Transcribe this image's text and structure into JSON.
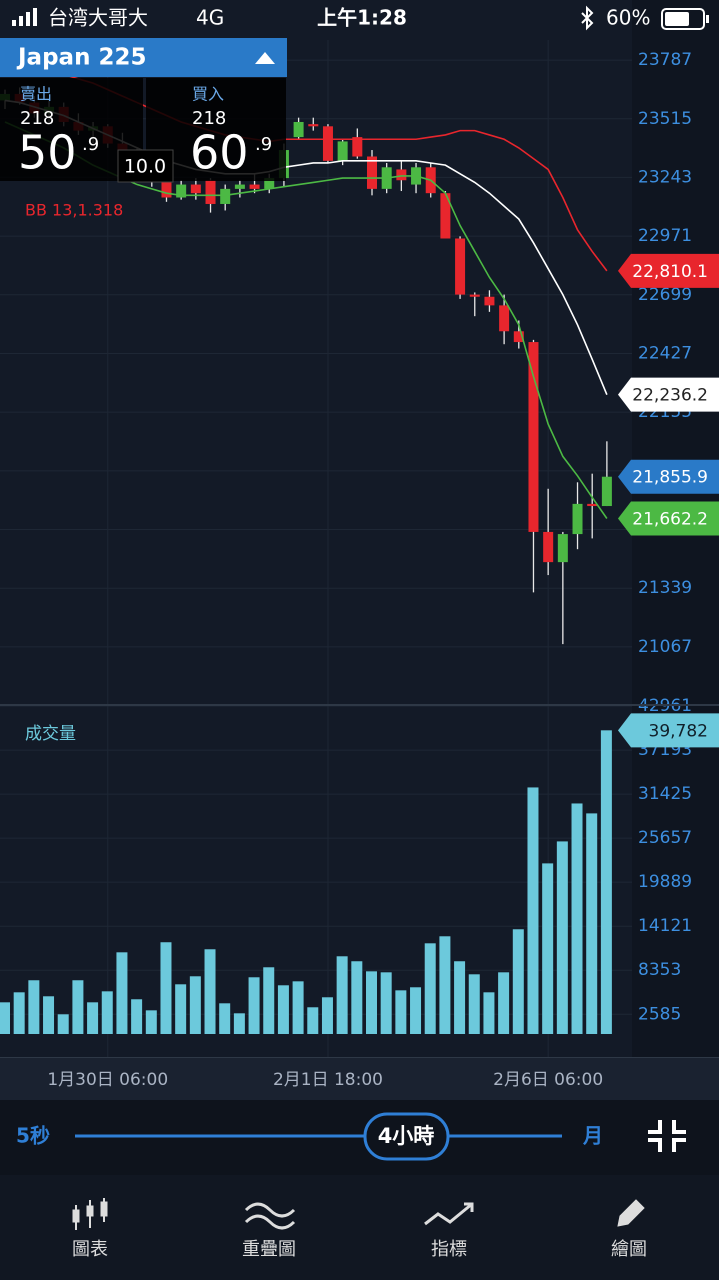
{
  "status_bar": {
    "carrier": "台湾大哥大",
    "network": "4G",
    "time": "上午1:28",
    "battery": "60%"
  },
  "header": {
    "instrument": "Japan 225",
    "sell": {
      "label": "賣出",
      "small": "218",
      "big": "50",
      "decimal": ".9"
    },
    "spread": "10.0",
    "buy": {
      "label": "買入",
      "small": "218",
      "big": "60",
      "decimal": ".9"
    }
  },
  "chart_data": [
    {
      "type": "candlestick",
      "annotation": "BB 13,1.318",
      "categories": [
        null,
        null,
        null,
        null,
        null,
        null,
        null,
        "1月30日 06:00",
        null,
        null,
        null,
        null,
        null,
        null,
        null,
        null,
        null,
        null,
        null,
        null,
        null,
        null,
        "2月1日 18:00",
        null,
        null,
        null,
        null,
        null,
        null,
        null,
        null,
        null,
        null,
        null,
        null,
        null,
        null,
        "2月6日 06:00",
        null,
        null,
        null,
        null
      ],
      "open": [
        23600,
        23630,
        23590,
        23540,
        23570,
        23500,
        23460,
        23480,
        23400,
        23320,
        23350,
        23230,
        23150,
        23210,
        23230,
        23120,
        23190,
        23210,
        23190,
        23240,
        23430,
        23490,
        23480,
        23320,
        23430,
        23340,
        23190,
        23280,
        23210,
        23290,
        23170,
        22960,
        22700,
        22690,
        22650,
        22530,
        22480,
        21600,
        21460,
        21590,
        21730,
        21720
      ],
      "high": [
        23650,
        23660,
        23620,
        23600,
        23590,
        23540,
        23500,
        23490,
        23450,
        23380,
        23360,
        23270,
        23230,
        23240,
        23240,
        23210,
        23230,
        23260,
        23260,
        23400,
        23520,
        23520,
        23490,
        23420,
        23470,
        23370,
        23310,
        23320,
        23310,
        23310,
        23180,
        22970,
        22710,
        22720,
        22700,
        22580,
        22490,
        21800,
        21600,
        21830,
        21870,
        22020
      ],
      "low": [
        23560,
        23580,
        23520,
        23500,
        23480,
        23440,
        23400,
        23380,
        23300,
        23250,
        23200,
        23130,
        23140,
        23140,
        23080,
        23090,
        23150,
        23170,
        23170,
        23200,
        23420,
        23460,
        23310,
        23300,
        23330,
        23160,
        23170,
        23180,
        23170,
        23150,
        22960,
        22680,
        22600,
        22620,
        22470,
        22450,
        21320,
        21400,
        21080,
        21520,
        21570,
        21720
      ],
      "close": [
        23630,
        23590,
        23540,
        23570,
        23500,
        23460,
        23480,
        23400,
        23320,
        23350,
        23230,
        23150,
        23210,
        23170,
        23120,
        23190,
        23210,
        23190,
        23240,
        23370,
        23500,
        23480,
        23320,
        23410,
        23340,
        23190,
        23290,
        23230,
        23290,
        23170,
        22960,
        22700,
        22690,
        22650,
        22530,
        22480,
        21600,
        21460,
        21590,
        21730,
        21720,
        21855.9
      ],
      "value_labels": [
        null,
        null,
        null,
        null,
        null,
        null,
        null,
        null,
        null,
        null,
        null,
        null,
        null,
        null,
        null,
        null,
        null,
        null,
        null,
        null,
        null,
        null,
        null,
        null,
        null,
        null,
        null,
        null,
        null,
        null,
        null,
        null,
        null,
        null,
        null,
        null,
        null,
        null,
        null,
        null,
        null,
        "21,855.9"
      ],
      "up_color": "#4cb944",
      "down_color": "#e8262d",
      "label_color": "#2a7ac8",
      "series": [
        {
          "color": "#e8262d",
          "values": [
            23760,
            23750,
            23740,
            23730,
            23720,
            23700,
            23680,
            23650,
            23620,
            23590,
            23560,
            23530,
            23500,
            23480,
            23460,
            23440,
            23430,
            23420,
            23410,
            23420,
            23420,
            23420,
            23420,
            23420,
            23420,
            23420,
            23420,
            23420,
            23420,
            23430,
            23440,
            23460,
            23460,
            23440,
            23420,
            23380,
            23330,
            23280,
            23150,
            23000,
            22900,
            22810.1
          ],
          "value_labels": [
            null,
            null,
            null,
            null,
            null,
            null,
            null,
            null,
            null,
            null,
            null,
            null,
            null,
            null,
            null,
            null,
            null,
            null,
            null,
            null,
            null,
            null,
            null,
            null,
            null,
            null,
            null,
            null,
            null,
            null,
            null,
            null,
            null,
            null,
            null,
            null,
            null,
            null,
            null,
            null,
            null,
            "22,810.1"
          ]
        },
        {
          "color": "#ffffff",
          "values": [
            23600,
            23590,
            23570,
            23550,
            23530,
            23500,
            23470,
            23440,
            23410,
            23380,
            23350,
            23320,
            23300,
            23280,
            23270,
            23260,
            23260,
            23260,
            23270,
            23290,
            23300,
            23310,
            23310,
            23320,
            23320,
            23320,
            23320,
            23320,
            23320,
            23310,
            23300,
            23260,
            23220,
            23170,
            23110,
            23050,
            22940,
            22820,
            22700,
            22560,
            22400,
            22236.2
          ],
          "value_labels": [
            null,
            null,
            null,
            null,
            null,
            null,
            null,
            null,
            null,
            null,
            null,
            null,
            null,
            null,
            null,
            null,
            null,
            null,
            null,
            null,
            null,
            null,
            null,
            null,
            null,
            null,
            null,
            null,
            null,
            null,
            null,
            null,
            null,
            null,
            null,
            null,
            null,
            null,
            null,
            null,
            null,
            "22,236.2"
          ]
        },
        {
          "color": "#4cb944",
          "values": [
            23500,
            23470,
            23440,
            23410,
            23380,
            23340,
            23300,
            23270,
            23240,
            23210,
            23190,
            23170,
            23160,
            23160,
            23160,
            23160,
            23170,
            23180,
            23190,
            23200,
            23210,
            23220,
            23230,
            23240,
            23240,
            23240,
            23240,
            23250,
            23250,
            23230,
            23170,
            23020,
            22900,
            22780,
            22680,
            22560,
            22320,
            22100,
            21950,
            21860,
            21760,
            21662.2
          ],
          "value_labels": [
            null,
            null,
            null,
            null,
            null,
            null,
            null,
            null,
            null,
            null,
            null,
            null,
            null,
            null,
            null,
            null,
            null,
            null,
            null,
            null,
            null,
            null,
            null,
            null,
            null,
            null,
            null,
            null,
            null,
            null,
            null,
            null,
            null,
            null,
            null,
            null,
            null,
            null,
            null,
            null,
            null,
            "21,662.2"
          ]
        }
      ],
      "ylim": [
        20821,
        23880
      ],
      "yticks": [
        23787,
        23515,
        23243,
        22971,
        22699,
        22427,
        22155,
        21883,
        21611,
        21339,
        21067
      ],
      "grid": true
    },
    {
      "type": "bar",
      "title": "成交量",
      "color": "#6cc9dc",
      "values": [
        4150,
        5460,
        7040,
        4940,
        2580,
        7040,
        4150,
        5590,
        10700,
        4550,
        3100,
        12020,
        6510,
        7560,
        11100,
        4020,
        2710,
        7430,
        8740,
        6380,
        6900,
        3500,
        4810,
        10180,
        9530,
        8210,
        8080,
        5720,
        6120,
        11880,
        12800,
        9530,
        7820,
        5460,
        8080,
        13720,
        32300,
        22350,
        25230,
        30200,
        28900,
        39782
      ],
      "value_labels": [
        null,
        null,
        null,
        null,
        null,
        null,
        null,
        null,
        null,
        null,
        null,
        null,
        null,
        null,
        null,
        null,
        null,
        null,
        null,
        null,
        null,
        null,
        null,
        null,
        null,
        null,
        null,
        null,
        null,
        null,
        null,
        null,
        null,
        null,
        null,
        null,
        null,
        null,
        null,
        null,
        null,
        "39,782"
      ],
      "ylim": [
        0,
        43230
      ],
      "yticks": [
        42961,
        37193,
        31425,
        25657,
        19889,
        14121,
        8353,
        2585
      ],
      "grid": true
    }
  ],
  "timeframe": {
    "min": "5秒",
    "selected": "4小時",
    "max": "月"
  },
  "tabs": [
    "圖表",
    "重疊圖",
    "指標",
    "繪圖"
  ]
}
